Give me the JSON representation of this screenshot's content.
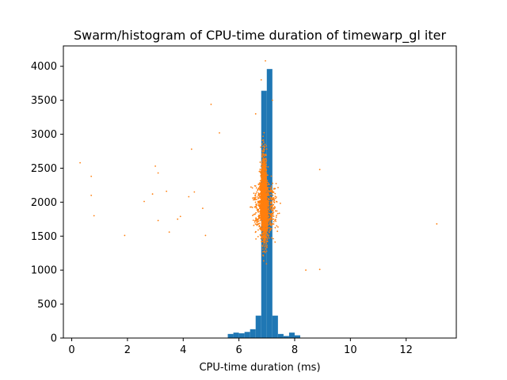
{
  "chart_data": {
    "type": "bar+scatter",
    "title": "Swarm/histogram of CPU-time duration of timewarp_gl iter",
    "xlabel": "CPU-time duration (ms)",
    "ylabel": "",
    "xlim": [
      -0.3,
      13.8
    ],
    "ylim": [
      0,
      4300
    ],
    "xticks": [
      0,
      2,
      4,
      6,
      8,
      10,
      12
    ],
    "yticks": [
      0,
      500,
      1000,
      1500,
      2000,
      2500,
      3000,
      3500,
      4000
    ],
    "grid": false,
    "legend": "none",
    "histogram": {
      "color": "#1f77b4",
      "bin_width": 0.2,
      "bins": [
        {
          "x0": 5.6,
          "count": 60
        },
        {
          "x0": 5.8,
          "count": 80
        },
        {
          "x0": 6.0,
          "count": 70
        },
        {
          "x0": 6.2,
          "count": 90
        },
        {
          "x0": 6.4,
          "count": 130
        },
        {
          "x0": 6.6,
          "count": 330
        },
        {
          "x0": 6.8,
          "count": 3640
        },
        {
          "x0": 7.0,
          "count": 3960
        },
        {
          "x0": 7.2,
          "count": 330
        },
        {
          "x0": 7.4,
          "count": 60
        },
        {
          "x0": 7.6,
          "count": 30
        },
        {
          "x0": 7.8,
          "count": 80
        },
        {
          "x0": 8.0,
          "count": 40
        }
      ]
    },
    "scatter": {
      "color": "#ff7f0e",
      "outliers": [
        [
          0.3,
          2580
        ],
        [
          0.7,
          2380
        ],
        [
          0.7,
          2100
        ],
        [
          0.8,
          1800
        ],
        [
          1.9,
          1510
        ],
        [
          2.6,
          2010
        ],
        [
          2.9,
          2120
        ],
        [
          3.0,
          2530
        ],
        [
          3.1,
          2430
        ],
        [
          3.1,
          1730
        ],
        [
          3.4,
          2160
        ],
        [
          3.5,
          1560
        ],
        [
          3.8,
          1750
        ],
        [
          3.9,
          1790
        ],
        [
          4.2,
          2080
        ],
        [
          4.3,
          2780
        ],
        [
          4.4,
          2150
        ],
        [
          4.7,
          1910
        ],
        [
          4.8,
          1510
        ],
        [
          5.0,
          3440
        ],
        [
          5.3,
          3020
        ],
        [
          8.4,
          1000
        ],
        [
          8.9,
          2480
        ],
        [
          8.9,
          1010
        ],
        [
          13.1,
          1680
        ]
      ],
      "clusters": [
        {
          "x_center": 6.9,
          "x_spread": 0.25,
          "y_min": 700,
          "y_max": 3400,
          "count": 1600
        },
        {
          "x_center": 6.95,
          "x_spread": 0.85,
          "y_min": 1000,
          "y_max": 2800,
          "count": 600
        }
      ],
      "isolated_high": [
        [
          6.95,
          4080
        ],
        [
          6.8,
          3800
        ],
        [
          7.2,
          3500
        ],
        [
          6.6,
          3300
        ]
      ]
    }
  }
}
